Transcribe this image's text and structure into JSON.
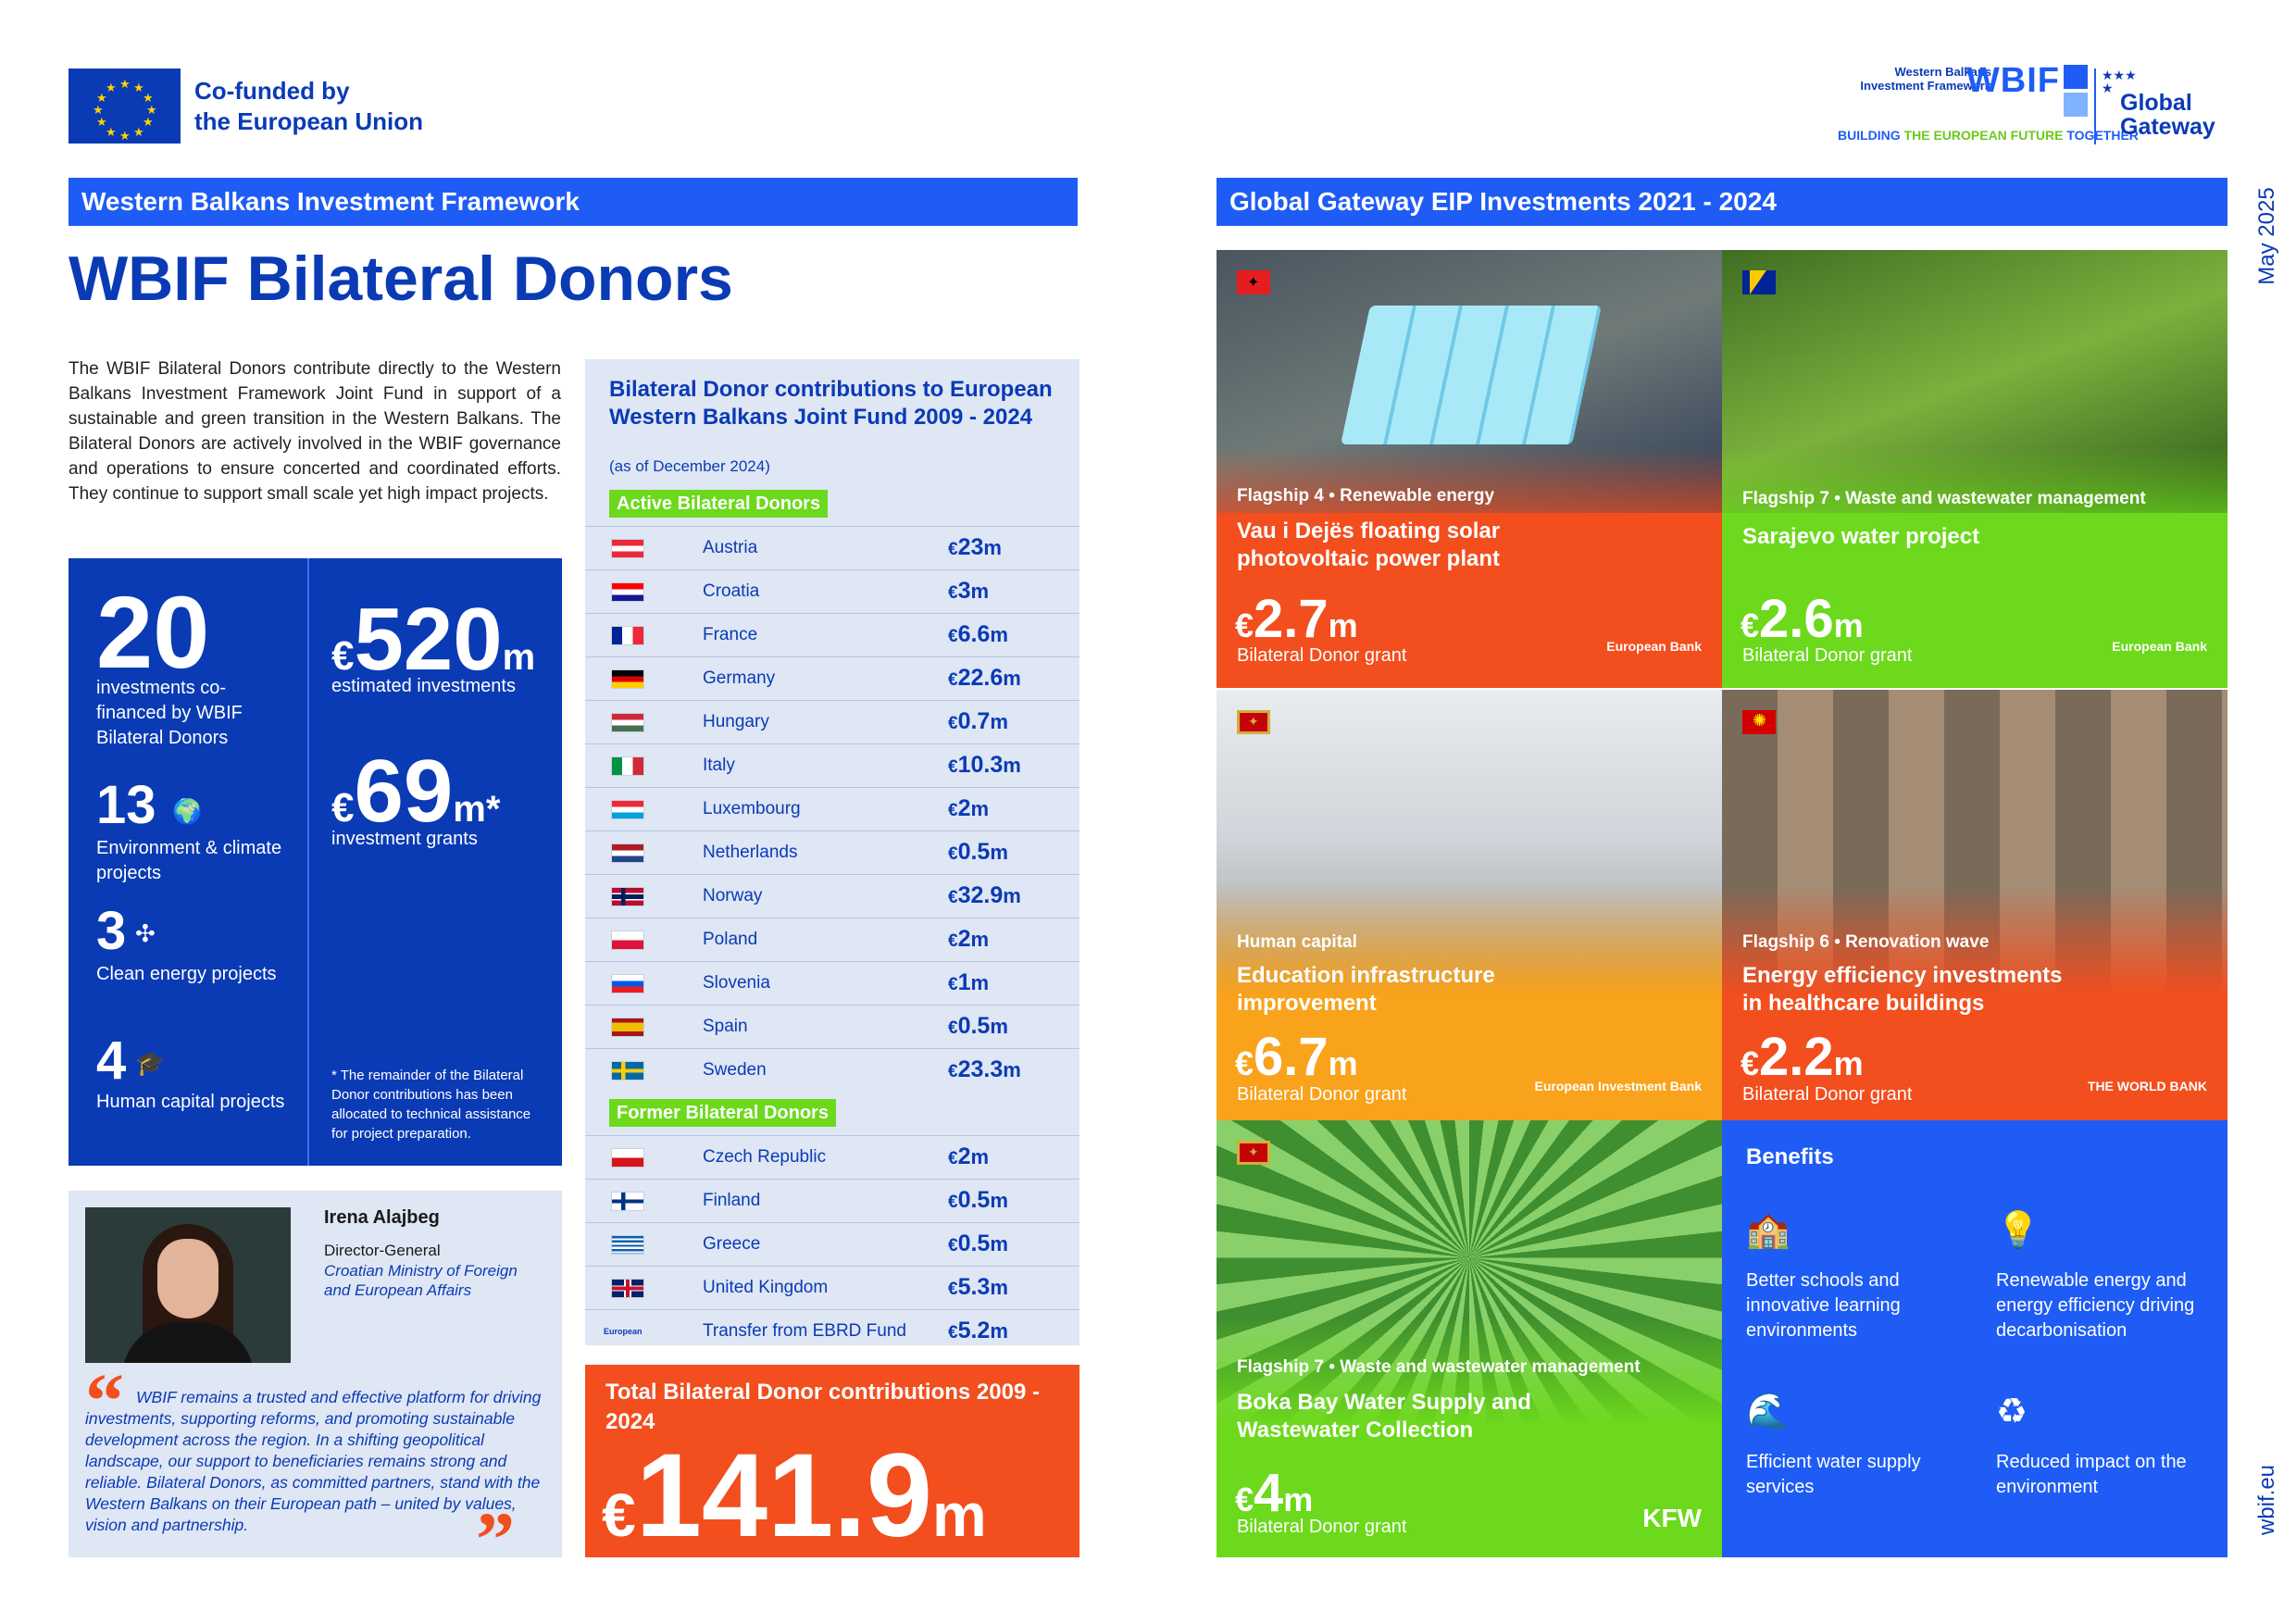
{
  "header": {
    "eu_label_line1": "Co-funded by",
    "eu_label_line2": "the European Union",
    "wbif_small_line1": "Western Balkans",
    "wbif_small_line2": "Investment Framework",
    "wbif_mark": "WBIF",
    "wbif_tag_a": "BUILDING",
    "wbif_tag_b": " THE EUROPEAN FUTURE ",
    "wbif_tag_c": "TOGETHER",
    "gg_line1": "Global",
    "gg_line2": "Gateway",
    "date": "May 2025",
    "site": "wbif.eu"
  },
  "left": {
    "section_bar": "Western Balkans Investment Framework",
    "title": "WBIF Bilateral Donors",
    "intro": "The WBIF Bilateral Donors contribute directly to the Western Balkans Investment Framework Joint Fund in support of a sustainable and green transition in the Western Balkans. The Bilateral Donors are actively involved in the WBIF governance and operations to ensure concerted and coordinated efforts. They continue to support small scale yet high impact projects."
  },
  "stats": {
    "investments": "20",
    "investments_label": "investments co-financed by WBIF Bilateral Donors",
    "env": "13",
    "env_label": "Environment & climate projects",
    "energy": "3",
    "energy_label": "Clean energy projects",
    "human": "4",
    "human_label": "Human capital projects",
    "est_cur": "€",
    "est_value": "520",
    "est_unit": "m",
    "est_label": "estimated investments",
    "grant_cur": "€",
    "grant_value": "69",
    "grant_unit": "m*",
    "grant_label": "investment grants",
    "note": "* The remainder of the Bilateral Donor contributions has been allocated to technical assistance for project preparation."
  },
  "quote": {
    "name": "Irena Alajbeg",
    "role": "Director-General",
    "org": "Croatian Ministry of Foreign and European Affairs",
    "text": "WBIF remains a trusted and effective platform for driving investments, supporting reforms, and promoting sustainable development across the region. In a shifting geopolitical landscape, our support to beneficiaries remains strong and reliable. Bilateral Donors, as committed partners, stand with the Western Balkans on their European path – united by values, vision and partnership."
  },
  "contributions": {
    "title": "Bilateral Donor contributions to European Western Balkans Joint Fund 2009 - 2024",
    "subtitle": "(as of December 2024)",
    "active_label": "Active Bilateral Donors",
    "former_label": "Former Bilateral Donors",
    "currency": "€",
    "active": [
      {
        "country": "Austria",
        "amount": "23",
        "unit": "m"
      },
      {
        "country": "Croatia",
        "amount": "3",
        "unit": "m"
      },
      {
        "country": "France",
        "amount": "6.6",
        "unit": "m"
      },
      {
        "country": "Germany",
        "amount": "22.6",
        "unit": "m"
      },
      {
        "country": "Hungary",
        "amount": "0.7",
        "unit": "m"
      },
      {
        "country": "Italy",
        "amount": "10.3",
        "unit": "m"
      },
      {
        "country": "Luxembourg",
        "amount": "2",
        "unit": "m"
      },
      {
        "country": "Netherlands",
        "amount": "0.5",
        "unit": "m"
      },
      {
        "country": "Norway",
        "amount": "32.9",
        "unit": "m"
      },
      {
        "country": "Poland",
        "amount": "2",
        "unit": "m"
      },
      {
        "country": "Slovenia",
        "amount": "1",
        "unit": "m"
      },
      {
        "country": "Spain",
        "amount": "0.5",
        "unit": "m"
      },
      {
        "country": "Sweden",
        "amount": "23.3",
        "unit": "m"
      }
    ],
    "former": [
      {
        "country": "Czech Republic",
        "amount": "2",
        "unit": "m"
      },
      {
        "country": "Finland",
        "amount": "0.5",
        "unit": "m"
      },
      {
        "country": "Greece",
        "amount": "0.5",
        "unit": "m"
      },
      {
        "country": "United Kingdom",
        "amount": "5.3",
        "unit": "m"
      },
      {
        "country": "Transfer from EBRD Fund",
        "amount": "5.2",
        "unit": "m"
      }
    ],
    "ebrd_logo_text": "European Bank",
    "total_title": "Total Bilateral Donor contributions 2009 - 2024",
    "total_cur": "€",
    "total_value": "141.9",
    "total_unit": "m"
  },
  "right": {
    "section_bar": "Global Gateway EIP Investments 2021 - 2024",
    "tiles": [
      {
        "tag": "Flagship 4 • Renewable energy",
        "title": "Vau i Dejës floating solar photovoltaic power plant",
        "cur": "€",
        "value": "2.7",
        "unit": "m",
        "sub": "Bilateral Donor grant",
        "partner": "European Bank"
      },
      {
        "tag": "Flagship 7 • Waste and wastewater management",
        "title": "Sarajevo water project",
        "cur": "€",
        "value": "2.6",
        "unit": "m",
        "sub": "Bilateral Donor grant",
        "partner": "European Bank"
      },
      {
        "tag": "Human capital",
        "title": "Education infrastructure improvement",
        "cur": "€",
        "value": "6.7",
        "unit": "m",
        "sub": "Bilateral Donor grant",
        "partner": "European Investment Bank"
      },
      {
        "tag": "Flagship 6 • Renovation wave",
        "title": "Energy efficiency investments in healthcare buildings",
        "cur": "€",
        "value": "2.2",
        "unit": "m",
        "sub": "Bilateral Donor grant",
        "partner": "THE WORLD BANK"
      },
      {
        "tag": "Flagship 7 • Waste and wastewater management",
        "title": "Boka Bay Water Supply and Wastewater Collection",
        "cur": "€",
        "value": "4",
        "unit": "m",
        "sub": "Bilateral Donor grant",
        "partner": "KFW"
      }
    ],
    "benefits_title": "Benefits",
    "benefits": [
      {
        "icon": "school-icon",
        "text": "Better schools and innovative learning environments"
      },
      {
        "icon": "lightbulb-icon",
        "text": "Renewable energy and energy efficiency driving decarbonisation"
      },
      {
        "icon": "water-icon",
        "text": "Efficient water supply services"
      },
      {
        "icon": "globe-recycle-icon",
        "text": "Reduced impact on the environment"
      }
    ]
  }
}
